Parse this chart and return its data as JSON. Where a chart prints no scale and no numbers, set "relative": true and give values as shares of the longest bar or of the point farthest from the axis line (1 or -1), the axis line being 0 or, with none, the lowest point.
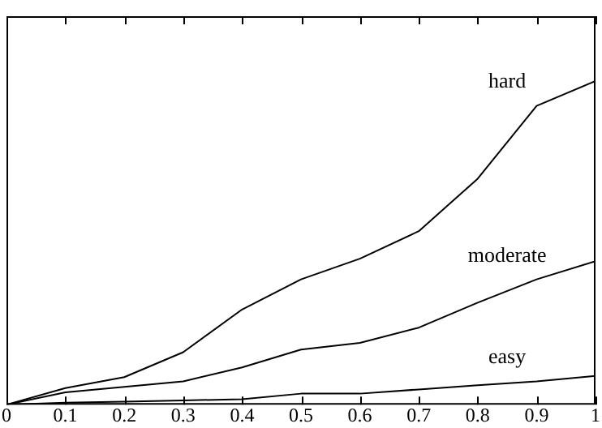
{
  "chart_data": {
    "type": "line",
    "relative": true,
    "x": [
      0,
      0.1,
      0.2,
      0.3,
      0.4,
      0.5,
      0.6,
      0.7,
      0.8,
      0.9,
      1
    ],
    "xlim": [
      0,
      1
    ],
    "xticks": [
      0,
      0.1,
      0.2,
      0.3,
      0.4,
      0.5,
      0.6,
      0.7,
      0.8,
      0.9,
      1
    ],
    "grid": false,
    "legend": false,
    "marker": "none",
    "line_style": "solid",
    "series": [
      {
        "name": "hard",
        "color": "#000000",
        "values": [
          0,
          0.051,
          0.085,
          0.162,
          0.294,
          0.387,
          0.451,
          0.536,
          0.698,
          0.923,
          1
        ]
      },
      {
        "name": "moderate",
        "color": "#000000",
        "values": [
          0,
          0.038,
          0.055,
          0.072,
          0.115,
          0.17,
          0.191,
          0.238,
          0.315,
          0.387,
          0.443
        ]
      },
      {
        "name": "easy",
        "color": "#000000",
        "values": [
          0,
          0.006,
          0.009,
          0.013,
          0.017,
          0.034,
          0.034,
          0.047,
          0.06,
          0.072,
          0.089
        ]
      }
    ]
  }
}
